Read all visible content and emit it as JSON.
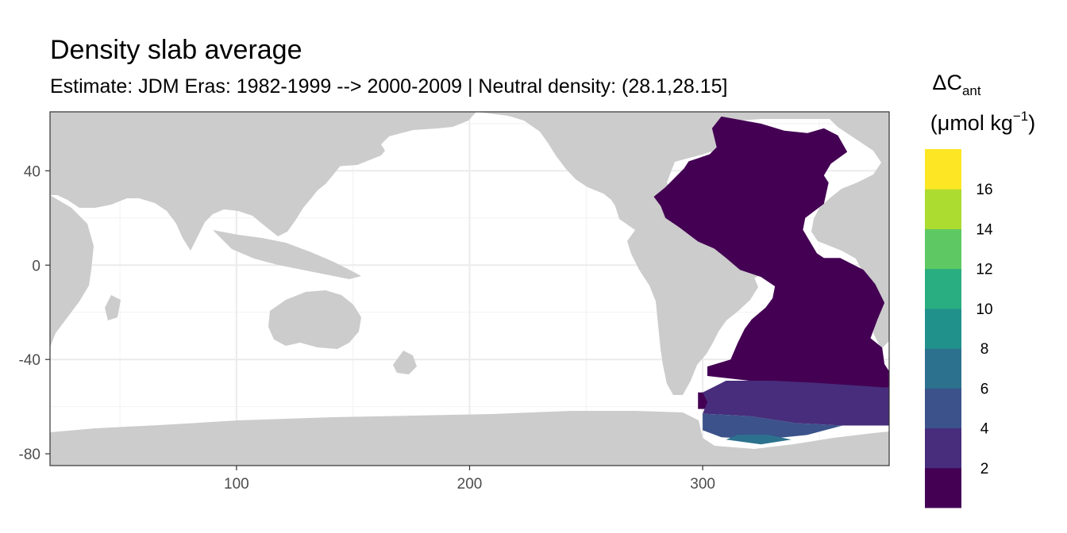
{
  "chart_data": {
    "type": "heatmap",
    "title": "Density slab average",
    "subtitle": "Estimate: JDM Eras: 1982-1999 --> 2000-2009 | Neutral density: (28.1,28.15]",
    "xlabel": "",
    "ylabel": "",
    "xlim": [
      20,
      380
    ],
    "ylim": [
      -85,
      65
    ],
    "x_ticks": [
      100,
      200,
      300
    ],
    "y_ticks": [
      40,
      0,
      -40,
      -80
    ],
    "x_tick_labels": [
      "100",
      "200",
      "300"
    ],
    "y_tick_labels": [
      "40",
      "0",
      "-40",
      "-80"
    ],
    "grid": true,
    "background": "#ffffff",
    "land_color": "#cccccc",
    "legend": {
      "title_main": "ΔC",
      "title_sub": "ant",
      "unit_prefix": "(μmol kg",
      "unit_exp": "−1",
      "unit_suffix": ")",
      "placement": "right",
      "breaks": [
        2,
        4,
        6,
        8,
        10,
        12,
        14,
        16
      ],
      "labels": [
        "2",
        "4",
        "6",
        "8",
        "10",
        "12",
        "14",
        "16"
      ],
      "colors": [
        "#440154",
        "#472d7b",
        "#3b528b",
        "#2c728e",
        "#21918c",
        "#28ae80",
        "#5ec962",
        "#addc30",
        "#fde725"
      ]
    },
    "regions": [
      {
        "name": "Atlantic main",
        "class": 0,
        "value_range": "0-2",
        "polygon": [
          [
            308,
            63
          ],
          [
            325,
            60
          ],
          [
            335,
            57
          ],
          [
            345,
            56
          ],
          [
            352,
            58
          ],
          [
            358,
            55
          ],
          [
            362,
            48
          ],
          [
            355,
            43
          ],
          [
            352,
            38
          ],
          [
            354,
            35
          ],
          [
            352,
            26
          ],
          [
            344,
            20
          ],
          [
            343,
            15
          ],
          [
            349,
            5
          ],
          [
            352,
            3
          ],
          [
            359,
            3
          ],
          [
            369,
            -2
          ],
          [
            374,
            -8
          ],
          [
            378,
            -16
          ],
          [
            375,
            -23
          ],
          [
            372,
            -31
          ],
          [
            377,
            -35
          ],
          [
            378,
            -42
          ],
          [
            380,
            -45
          ],
          [
            380,
            -52
          ],
          [
            360,
            -52
          ],
          [
            340,
            -50
          ],
          [
            320,
            -49
          ],
          [
            302,
            -47
          ],
          [
            302,
            -43
          ],
          [
            312,
            -40
          ],
          [
            315,
            -33
          ],
          [
            318,
            -27
          ],
          [
            321,
            -23
          ],
          [
            327,
            -18
          ],
          [
            330,
            -14
          ],
          [
            331,
            -9
          ],
          [
            325,
            -5
          ],
          [
            316,
            -2
          ],
          [
            310,
            3
          ],
          [
            305,
            7
          ],
          [
            298,
            10
          ],
          [
            290,
            16
          ],
          [
            284,
            20
          ],
          [
            282,
            25
          ],
          [
            279,
            29
          ],
          [
            284,
            33
          ],
          [
            289,
            38
          ],
          [
            292,
            41
          ],
          [
            294,
            44
          ],
          [
            297,
            45
          ],
          [
            303,
            47
          ],
          [
            306,
            50
          ],
          [
            304,
            58
          ]
        ]
      },
      {
        "name": "Drake Passage",
        "class": 0,
        "value_range": "0-2",
        "polygon": [
          [
            298,
            -54
          ],
          [
            302,
            -54
          ],
          [
            302,
            -61
          ],
          [
            298,
            -61
          ]
        ]
      },
      {
        "name": "Southern band",
        "class": 1,
        "value_range": "2-4",
        "polygon": [
          [
            300,
            -54
          ],
          [
            310,
            -49
          ],
          [
            330,
            -49
          ],
          [
            350,
            -50
          ],
          [
            380,
            -52
          ],
          [
            380,
            -68
          ],
          [
            360,
            -68
          ],
          [
            340,
            -67
          ],
          [
            320,
            -64
          ],
          [
            300,
            -63
          ],
          [
            302,
            -58
          ]
        ]
      },
      {
        "name": "Weddell Sea",
        "class": 2,
        "value_range": "4-6",
        "polygon": [
          [
            300,
            -63
          ],
          [
            320,
            -64
          ],
          [
            340,
            -67
          ],
          [
            360,
            -68
          ],
          [
            345,
            -72
          ],
          [
            325,
            -74
          ],
          [
            308,
            -73
          ],
          [
            300,
            -70
          ]
        ]
      },
      {
        "name": "Weddell shelf",
        "class": 3,
        "value_range": "6-8",
        "polygon": [
          [
            310,
            -74
          ],
          [
            325,
            -76
          ],
          [
            338,
            -74
          ],
          [
            328,
            -72
          ],
          [
            315,
            -72
          ]
        ]
      }
    ]
  }
}
